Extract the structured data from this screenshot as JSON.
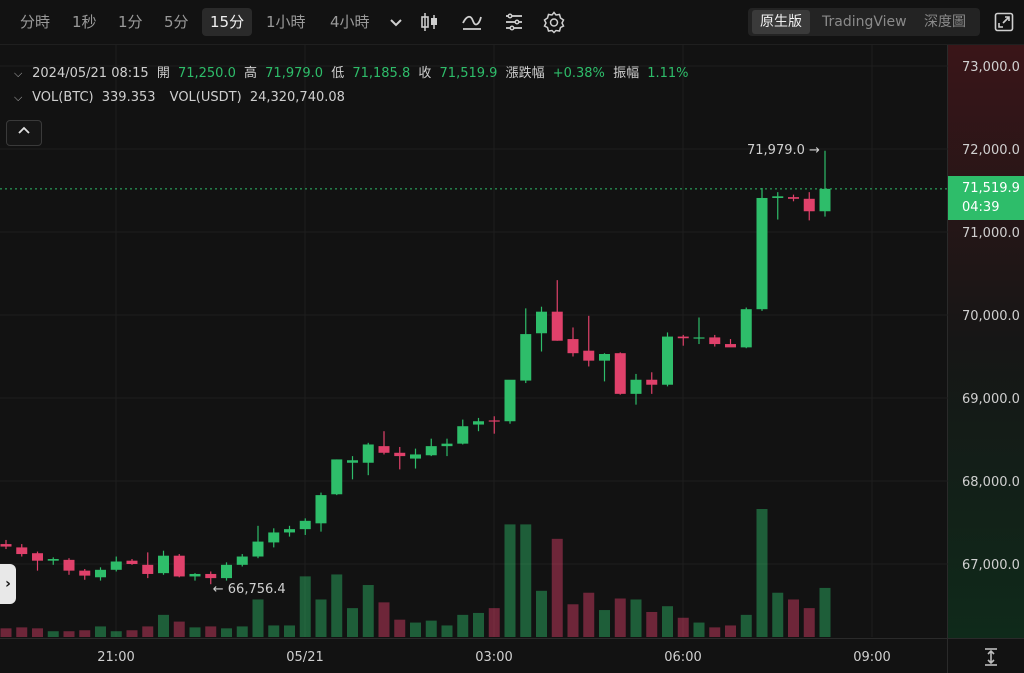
{
  "toolbar": {
    "timeframes": [
      "分時",
      "1秒",
      "1分",
      "5分",
      "15分",
      "1小時",
      "4小時"
    ],
    "active_timeframe": "15分",
    "icons": [
      "chevron-down-icon",
      "candlestick-type-icon",
      "indicators-icon",
      "layout-icon",
      "settings-icon"
    ],
    "views": [
      "原生版",
      "TradingView",
      "深度圖"
    ],
    "active_view": "原生版",
    "fullscreen_icon": "fullscreen-icon"
  },
  "legend": {
    "datetime": "2024/05/21 08:15",
    "open_label": "開",
    "open": "71,250.0",
    "high_label": "高",
    "high": "71,979.0",
    "low_label": "低",
    "low": "71,185.8",
    "close_label": "收",
    "close": "71,519.9",
    "change_label": "漲跌幅",
    "change": "+0.38%",
    "amplitude_label": "振幅",
    "amplitude": "1.11%",
    "vol_btc_label": "VOL(BTC)",
    "vol_btc": "339.353",
    "vol_usdt_label": "VOL(USDT)",
    "vol_usdt": "24,320,740.08"
  },
  "markers": {
    "max_label": "71,979.0 →",
    "min_label": "← 66,756.4"
  },
  "price_badge": {
    "price": "71,519.9",
    "countdown": "04:39"
  },
  "colors": {
    "up": "#2ebd6a",
    "down": "#e0416b",
    "bg": "#121212",
    "grid": "#1e1e1e"
  },
  "chart_data": {
    "type": "candlestick",
    "y_ticks": [
      "73,000.0",
      "72,000.0",
      "71,000.0",
      "70,000.0",
      "69,000.0",
      "68,000.0",
      "67,000.0"
    ],
    "y_tick_values": [
      73000,
      72000,
      71000,
      70000,
      69000,
      68000,
      67000
    ],
    "x_ticks": [
      "21:00",
      "05/21",
      "03:00",
      "06:00",
      "09:00"
    ],
    "ylim": [
      66100,
      73100
    ],
    "last_price": 71519.9,
    "ohlc": [
      {
        "o": 67240,
        "h": 67290,
        "l": 67180,
        "c": 67210
      },
      {
        "o": 67200,
        "h": 67240,
        "l": 67090,
        "c": 67120
      },
      {
        "o": 67130,
        "h": 67150,
        "l": 66920,
        "c": 67040
      },
      {
        "o": 67040,
        "h": 67080,
        "l": 66990,
        "c": 67060
      },
      {
        "o": 67050,
        "h": 67070,
        "l": 66870,
        "c": 66920
      },
      {
        "o": 66920,
        "h": 66940,
        "l": 66810,
        "c": 66860
      },
      {
        "o": 66840,
        "h": 66960,
        "l": 66800,
        "c": 66930
      },
      {
        "o": 66930,
        "h": 67090,
        "l": 66910,
        "c": 67030
      },
      {
        "o": 67040,
        "h": 67060,
        "l": 66990,
        "c": 67000
      },
      {
        "o": 66990,
        "h": 67140,
        "l": 66830,
        "c": 66880
      },
      {
        "o": 66890,
        "h": 67160,
        "l": 66870,
        "c": 67100
      },
      {
        "o": 67100,
        "h": 67120,
        "l": 66840,
        "c": 66850
      },
      {
        "o": 66850,
        "h": 66890,
        "l": 66800,
        "c": 66880
      },
      {
        "o": 66880,
        "h": 66910,
        "l": 66756.4,
        "c": 66830
      },
      {
        "o": 66830,
        "h": 67020,
        "l": 66800,
        "c": 66990
      },
      {
        "o": 66990,
        "h": 67120,
        "l": 66970,
        "c": 67090
      },
      {
        "o": 67090,
        "h": 67460,
        "l": 67070,
        "c": 67270
      },
      {
        "o": 67260,
        "h": 67430,
        "l": 67200,
        "c": 67380
      },
      {
        "o": 67380,
        "h": 67460,
        "l": 67330,
        "c": 67420
      },
      {
        "o": 67420,
        "h": 67550,
        "l": 67350,
        "c": 67520
      },
      {
        "o": 67490,
        "h": 67860,
        "l": 67390,
        "c": 67830
      },
      {
        "o": 67840,
        "h": 68260,
        "l": 67830,
        "c": 68260
      },
      {
        "o": 68220,
        "h": 68300,
        "l": 68020,
        "c": 68250
      },
      {
        "o": 68220,
        "h": 68460,
        "l": 68070,
        "c": 68440
      },
      {
        "o": 68420,
        "h": 68600,
        "l": 68320,
        "c": 68340
      },
      {
        "o": 68340,
        "h": 68410,
        "l": 68140,
        "c": 68300
      },
      {
        "o": 68270,
        "h": 68390,
        "l": 68150,
        "c": 68320
      },
      {
        "o": 68310,
        "h": 68510,
        "l": 68300,
        "c": 68420
      },
      {
        "o": 68420,
        "h": 68510,
        "l": 68300,
        "c": 68450
      },
      {
        "o": 68450,
        "h": 68740,
        "l": 68440,
        "c": 68660
      },
      {
        "o": 68680,
        "h": 68760,
        "l": 68600,
        "c": 68720
      },
      {
        "o": 68730,
        "h": 68780,
        "l": 68570,
        "c": 68720
      },
      {
        "o": 68720,
        "h": 69170,
        "l": 68690,
        "c": 69220
      },
      {
        "o": 69210,
        "h": 70080,
        "l": 69180,
        "c": 69770
      },
      {
        "o": 69780,
        "h": 70100,
        "l": 69560,
        "c": 70040
      },
      {
        "o": 70040,
        "h": 70420,
        "l": 69690,
        "c": 69690
      },
      {
        "o": 69710,
        "h": 69850,
        "l": 69500,
        "c": 69540
      },
      {
        "o": 69570,
        "h": 69990,
        "l": 69380,
        "c": 69450
      },
      {
        "o": 69450,
        "h": 69540,
        "l": 69200,
        "c": 69530
      },
      {
        "o": 69540,
        "h": 69550,
        "l": 69040,
        "c": 69050
      },
      {
        "o": 69050,
        "h": 69290,
        "l": 68920,
        "c": 69220
      },
      {
        "o": 69220,
        "h": 69310,
        "l": 69050,
        "c": 69160
      },
      {
        "o": 69160,
        "h": 69790,
        "l": 69140,
        "c": 69740
      },
      {
        "o": 69740,
        "h": 69760,
        "l": 69630,
        "c": 69720
      },
      {
        "o": 69720,
        "h": 69970,
        "l": 69650,
        "c": 69730
      },
      {
        "o": 69730,
        "h": 69760,
        "l": 69620,
        "c": 69650
      },
      {
        "o": 69650,
        "h": 69710,
        "l": 69620,
        "c": 69610
      },
      {
        "o": 69610,
        "h": 70090,
        "l": 69600,
        "c": 70070
      },
      {
        "o": 70070,
        "h": 71530,
        "l": 70050,
        "c": 71410
      },
      {
        "o": 71410,
        "h": 71480,
        "l": 71150,
        "c": 71430
      },
      {
        "o": 71420,
        "h": 71450,
        "l": 71370,
        "c": 71400
      },
      {
        "o": 71400,
        "h": 71480,
        "l": 71140,
        "c": 71250
      },
      {
        "o": 71250,
        "h": 71979,
        "l": 71185.8,
        "c": 71519.9
      }
    ],
    "volume": [
      90,
      100,
      90,
      60,
      60,
      70,
      110,
      60,
      70,
      110,
      230,
      160,
      100,
      110,
      90,
      110,
      390,
      120,
      120,
      630,
      390,
      650,
      300,
      540,
      360,
      180,
      150,
      170,
      120,
      230,
      250,
      300,
      1170,
      1170,
      480,
      1020,
      340,
      460,
      280,
      400,
      390,
      260,
      320,
      200,
      150,
      100,
      120,
      230,
      1330,
      460,
      390,
      300,
      510
    ]
  }
}
